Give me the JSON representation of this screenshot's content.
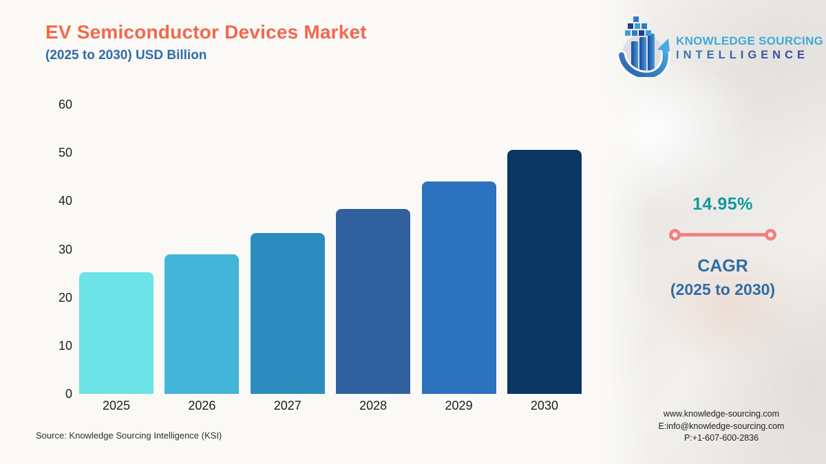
{
  "header": {
    "title": "EV Semiconductor Devices Market",
    "subtitle": "(2025 to 2030) USD Billion"
  },
  "logo": {
    "line1": "KNOWLEDGE SOURCING",
    "line2": "INTELLIGENCE"
  },
  "chart_data": {
    "type": "bar",
    "title": "EV Semiconductor Devices Market",
    "subtitle": "(2025 to 2030) USD Billion",
    "categories": [
      "2025",
      "2026",
      "2027",
      "2028",
      "2029",
      "2030"
    ],
    "values": [
      25.2,
      29.0,
      33.3,
      38.3,
      44.0,
      50.6
    ],
    "unit": "USD Billion",
    "ylim": [
      0,
      60
    ],
    "yticks": [
      0,
      10,
      20,
      30,
      40,
      50,
      60
    ],
    "bar_colors": [
      "#6CE3E6",
      "#42B5D8",
      "#2D8CBE",
      "#31609E",
      "#2C72BE",
      "#0A3763"
    ],
    "grid": false,
    "legend": false,
    "rounded_bar_tops": true
  },
  "cagr": {
    "value": "14.95%",
    "label": "CAGR",
    "sublabel": "(2025 to 2030)",
    "value_color": "#12989E",
    "label_color": "#2E6CA6",
    "connector_color": "#F38181"
  },
  "source": "Source: Knowledge Sourcing Intelligence (KSI)",
  "contact": {
    "website": "www.knowledge-sourcing.com",
    "email": "E:info@knowledge-sourcing.com",
    "phone": "P:+1-607-600-2836"
  },
  "colors": {
    "title": "#F2684C",
    "subtitle": "#2E6CA6",
    "background": "#FAF9F6"
  }
}
